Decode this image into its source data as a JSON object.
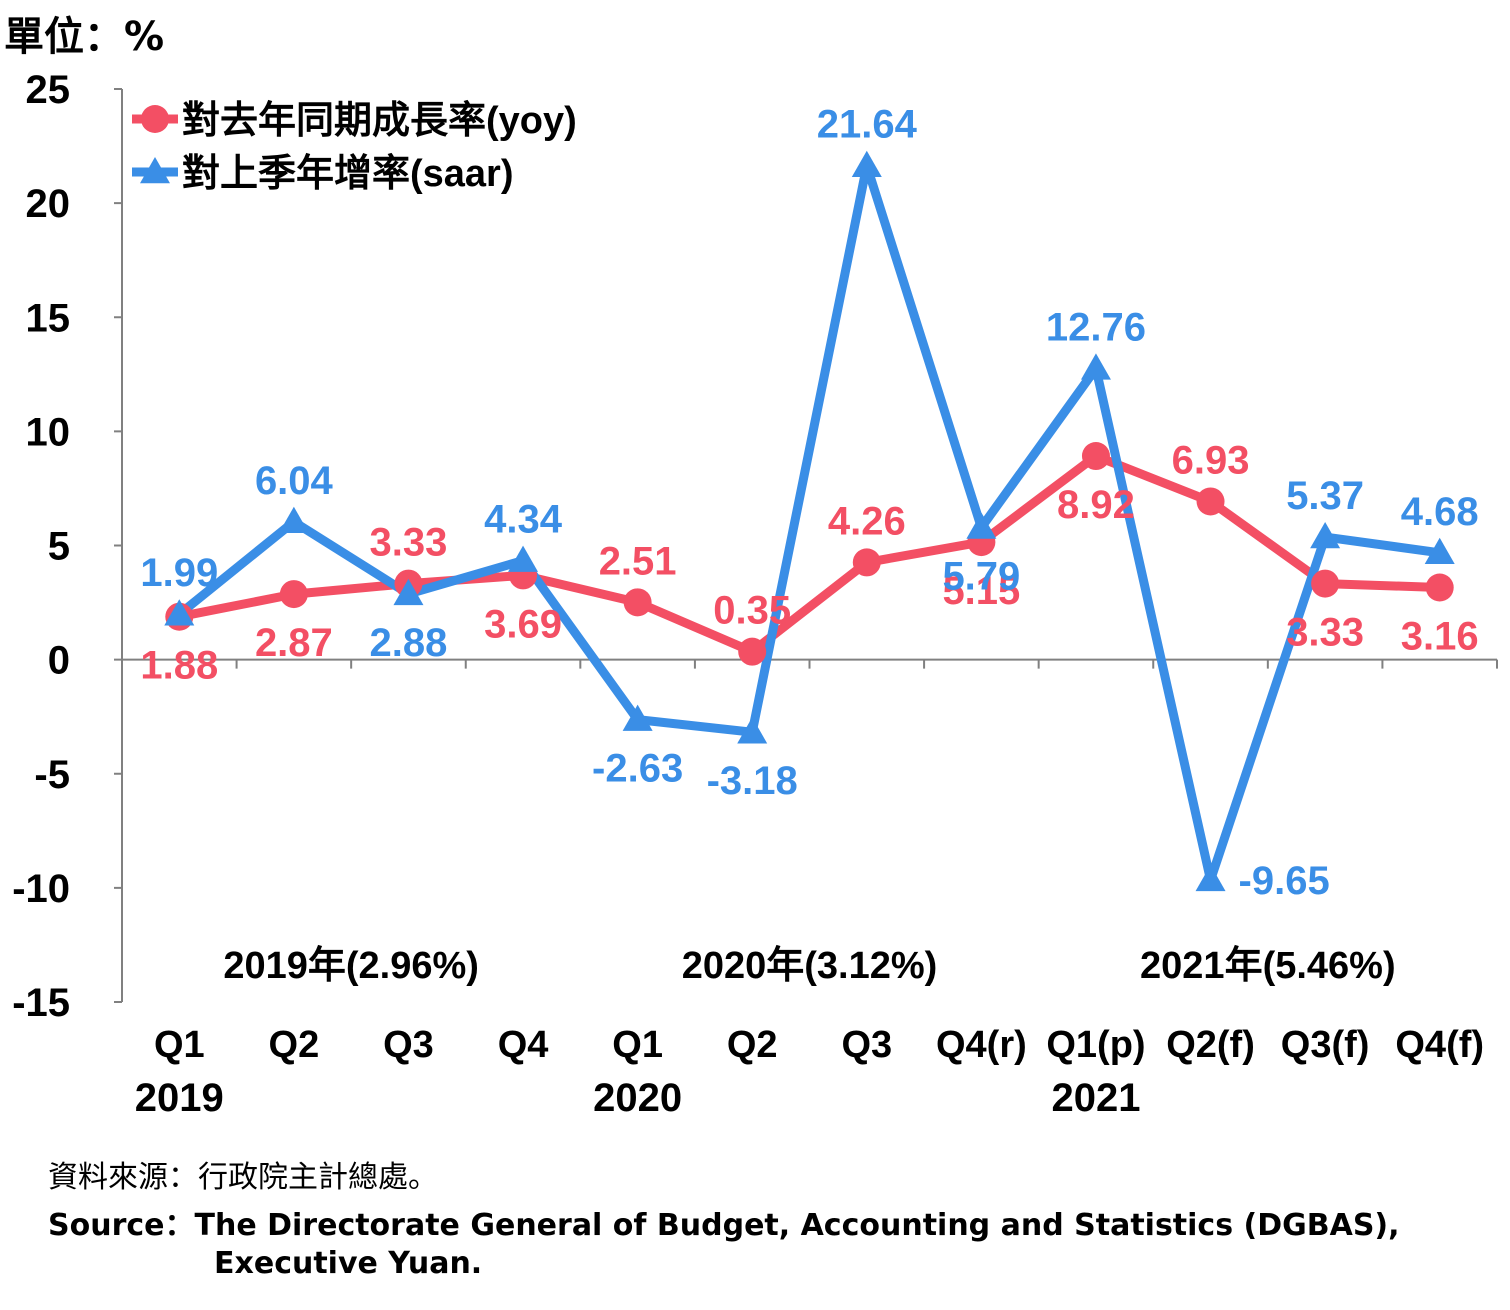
{
  "unit_label": "單位：%",
  "source": {
    "zh": "資料來源：行政院主計總處。",
    "en_line1": "Source：The Directorate General of Budget, Accounting and Statistics (DGBAS),",
    "en_line2": "Executive Yuan."
  },
  "colors": {
    "yoy": "#f34f64",
    "saar": "#3a8ee6",
    "axis": "#808080",
    "text": "#000000"
  },
  "chart_data": {
    "type": "line",
    "categories": [
      "Q1",
      "Q2",
      "Q3",
      "Q4",
      "Q1",
      "Q2",
      "Q3",
      "Q4(r)",
      "Q1(p)",
      "Q2(f)",
      "Q3(f)",
      "Q4(f)"
    ],
    "year_labels": [
      {
        "label": "2019",
        "index": 0
      },
      {
        "label": "2020",
        "index": 4
      },
      {
        "label": "2021",
        "index": 8
      }
    ],
    "annual_labels": [
      {
        "label": "2019年(2.96%)",
        "center": 1.5
      },
      {
        "label": "2020年(3.12%)",
        "center": 5.5
      },
      {
        "label": "2021年(5.46%)",
        "center": 9.5
      }
    ],
    "ylim": [
      -15,
      25
    ],
    "yticks": [
      -15,
      -10,
      -5,
      0,
      5,
      10,
      15,
      20,
      25
    ],
    "legend_position": "top-left",
    "series": [
      {
        "name": "對去年同期成長率(yoy)",
        "marker": "circle",
        "values": [
          1.88,
          2.87,
          3.33,
          3.69,
          2.51,
          0.35,
          4.26,
          5.15,
          8.92,
          6.93,
          3.33,
          3.16
        ],
        "labels": [
          "1.88",
          "2.87",
          "3.33",
          "3.69",
          "2.51",
          "0.35",
          "4.26",
          "5.15",
          "8.92",
          "6.93",
          "3.33",
          "3.16"
        ]
      },
      {
        "name": "對上季年增率(saar)",
        "marker": "triangle",
        "values": [
          1.99,
          6.04,
          2.88,
          4.34,
          -2.63,
          -3.18,
          21.64,
          5.79,
          12.76,
          -9.65,
          5.37,
          4.68
        ],
        "labels": [
          "1.99",
          "6.04",
          "2.88",
          "4.34",
          "-2.63",
          "-3.18",
          "21.64",
          "5.79",
          "12.76",
          "-9.65",
          "5.37",
          "4.68"
        ]
      }
    ]
  }
}
